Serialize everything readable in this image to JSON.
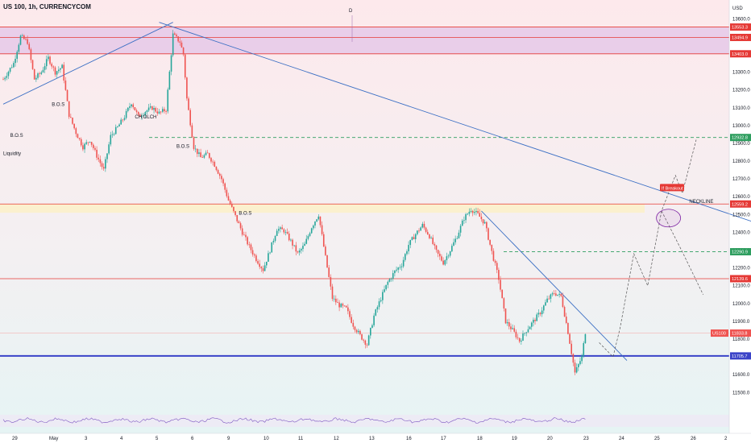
{
  "title": "US 100, 1h, CURRENCYCOM",
  "currency": "USD",
  "session_marker": "D",
  "colors": {
    "up": "#26a69a",
    "down": "#ef5350",
    "trend": "#3b6fc4",
    "resistance": "#e53935",
    "support": "#3a43c8",
    "target": "#2e9e5f",
    "projection": "#555555"
  },
  "chart_data": {
    "type": "candlestick",
    "title": "US 100, 1h, CURRENCYCOM",
    "ylim": [
      11420,
      13660
    ],
    "y_ticks": [
      13600,
      13500,
      13400,
      13300,
      13200,
      13100,
      13000,
      12900,
      12800,
      12700,
      12600,
      12500,
      12400,
      12300,
      12200,
      12100,
      12000,
      11900,
      11800,
      11700,
      11600,
      11500
    ],
    "x_ticks": [
      "29",
      "May",
      "3",
      "4",
      "5",
      "6",
      "9",
      "10",
      "11",
      "12",
      "13",
      "16",
      "17",
      "18",
      "19",
      "20",
      "23",
      "24",
      "25",
      "26",
      "2"
    ],
    "price_path": [
      [
        0,
        13260
      ],
      [
        3,
        13350
      ],
      [
        5,
        13500
      ],
      [
        7,
        13470
      ],
      [
        9,
        13260
      ],
      [
        11,
        13300
      ],
      [
        13,
        13380
      ],
      [
        15,
        13300
      ],
      [
        17,
        13330
      ],
      [
        19,
        13060
      ],
      [
        21,
        12960
      ],
      [
        23,
        12880
      ],
      [
        25,
        12920
      ],
      [
        27,
        12830
      ],
      [
        29,
        12750
      ],
      [
        31,
        12940
      ],
      [
        33,
        12990
      ],
      [
        35,
        13050
      ],
      [
        37,
        13130
      ],
      [
        39,
        13050
      ],
      [
        41,
        13080
      ],
      [
        43,
        13100
      ],
      [
        45,
        13070
      ],
      [
        47,
        13090
      ],
      [
        48,
        13300
      ],
      [
        49,
        13510
      ],
      [
        50,
        13490
      ],
      [
        51,
        13470
      ],
      [
        52,
        13400
      ],
      [
        53,
        13150
      ],
      [
        55,
        12880
      ],
      [
        57,
        12820
      ],
      [
        59,
        12840
      ],
      [
        61,
        12780
      ],
      [
        63,
        12700
      ],
      [
        65,
        12580
      ],
      [
        67,
        12490
      ],
      [
        69,
        12400
      ],
      [
        71,
        12320
      ],
      [
        73,
        12250
      ],
      [
        75,
        12190
      ],
      [
        77,
        12300
      ],
      [
        79,
        12420
      ],
      [
        81,
        12410
      ],
      [
        83,
        12350
      ],
      [
        85,
        12280
      ],
      [
        87,
        12330
      ],
      [
        89,
        12430
      ],
      [
        91,
        12500
      ],
      [
        93,
        12260
      ],
      [
        95,
        12030
      ],
      [
        97,
        11990
      ],
      [
        99,
        11970
      ],
      [
        101,
        11880
      ],
      [
        103,
        11820
      ],
      [
        105,
        11770
      ],
      [
        107,
        11930
      ],
      [
        109,
        12030
      ],
      [
        111,
        12120
      ],
      [
        113,
        12180
      ],
      [
        115,
        12220
      ],
      [
        117,
        12330
      ],
      [
        119,
        12390
      ],
      [
        121,
        12440
      ],
      [
        123,
        12380
      ],
      [
        125,
        12290
      ],
      [
        127,
        12230
      ],
      [
        129,
        12300
      ],
      [
        131,
        12380
      ],
      [
        133,
        12480
      ],
      [
        135,
        12530
      ],
      [
        137,
        12500
      ],
      [
        139,
        12450
      ],
      [
        141,
        12290
      ],
      [
        143,
        12140
      ],
      [
        145,
        11900
      ],
      [
        147,
        11850
      ],
      [
        149,
        11790
      ],
      [
        151,
        11850
      ],
      [
        153,
        11900
      ],
      [
        155,
        11950
      ],
      [
        157,
        12020
      ],
      [
        159,
        12060
      ],
      [
        161,
        12040
      ],
      [
        163,
        11840
      ],
      [
        165,
        11610
      ],
      [
        167,
        11700
      ],
      [
        168,
        11840
      ]
    ],
    "price_levels": [
      {
        "value": 13553.3,
        "label": "13553.3",
        "kind": "resistance"
      },
      {
        "value": 13494.9,
        "label": "13494.9",
        "kind": "resistance"
      },
      {
        "value": 13403.0,
        "label": "13403.0",
        "kind": "resistance"
      },
      {
        "value": 12559.2,
        "label": "12559.2",
        "kind": "resistance"
      },
      {
        "value": 12139.6,
        "label": "12139.6",
        "kind": "resistance"
      },
      {
        "value": 11705.7,
        "label": "11705.7",
        "kind": "support"
      },
      {
        "value": 12932.8,
        "label": "12932.8",
        "kind": "target"
      },
      {
        "value": 12290.9,
        "label": "12290.9",
        "kind": "target"
      }
    ],
    "current_price": {
      "value": 11833.8,
      "label": "11833.8",
      "tag": "US100"
    },
    "zones": [
      {
        "from": 13403.0,
        "to": 13553.3,
        "color": "#e5c9e8"
      },
      {
        "from": 12510,
        "to": 12559.2,
        "color": "#fbf0c8"
      }
    ],
    "annotations": [
      {
        "text": "B.O.S",
        "x": 14,
        "y": 13110
      },
      {
        "text": "CH.OLCH",
        "x": 38,
        "y": 13040
      },
      {
        "text": "B.O.S",
        "x": 2,
        "y": 12935
      },
      {
        "text": "Liquidity",
        "x": 0,
        "y": 12835
      },
      {
        "text": "B.O.S",
        "x": 50,
        "y": 12875
      },
      {
        "text": "B.O.S",
        "x": 68,
        "y": 12500
      },
      {
        "text": "NECKLINE",
        "x": 198,
        "y": 12565
      }
    ],
    "breakout_label": "If Breakout",
    "trendlines": [
      {
        "from": [
          0,
          13120
        ],
        "to": [
          49,
          13580
        ]
      },
      {
        "from": [
          45,
          13580
        ],
        "to": [
          230,
          12370
        ]
      },
      {
        "from": [
          138,
          12520
        ],
        "to": [
          180,
          11680
        ]
      }
    ],
    "projections": [
      [
        [
          172,
          11780
        ],
        [
          176,
          11700
        ],
        [
          178,
          11860
        ],
        [
          182,
          12280
        ],
        [
          186,
          12100
        ],
        [
          190,
          12520
        ],
        [
          194,
          12720
        ],
        [
          196,
          12620
        ],
        [
          200,
          12920
        ]
      ],
      [
        [
          190,
          12520
        ],
        [
          196,
          12290
        ],
        [
          202,
          12050
        ]
      ]
    ]
  }
}
